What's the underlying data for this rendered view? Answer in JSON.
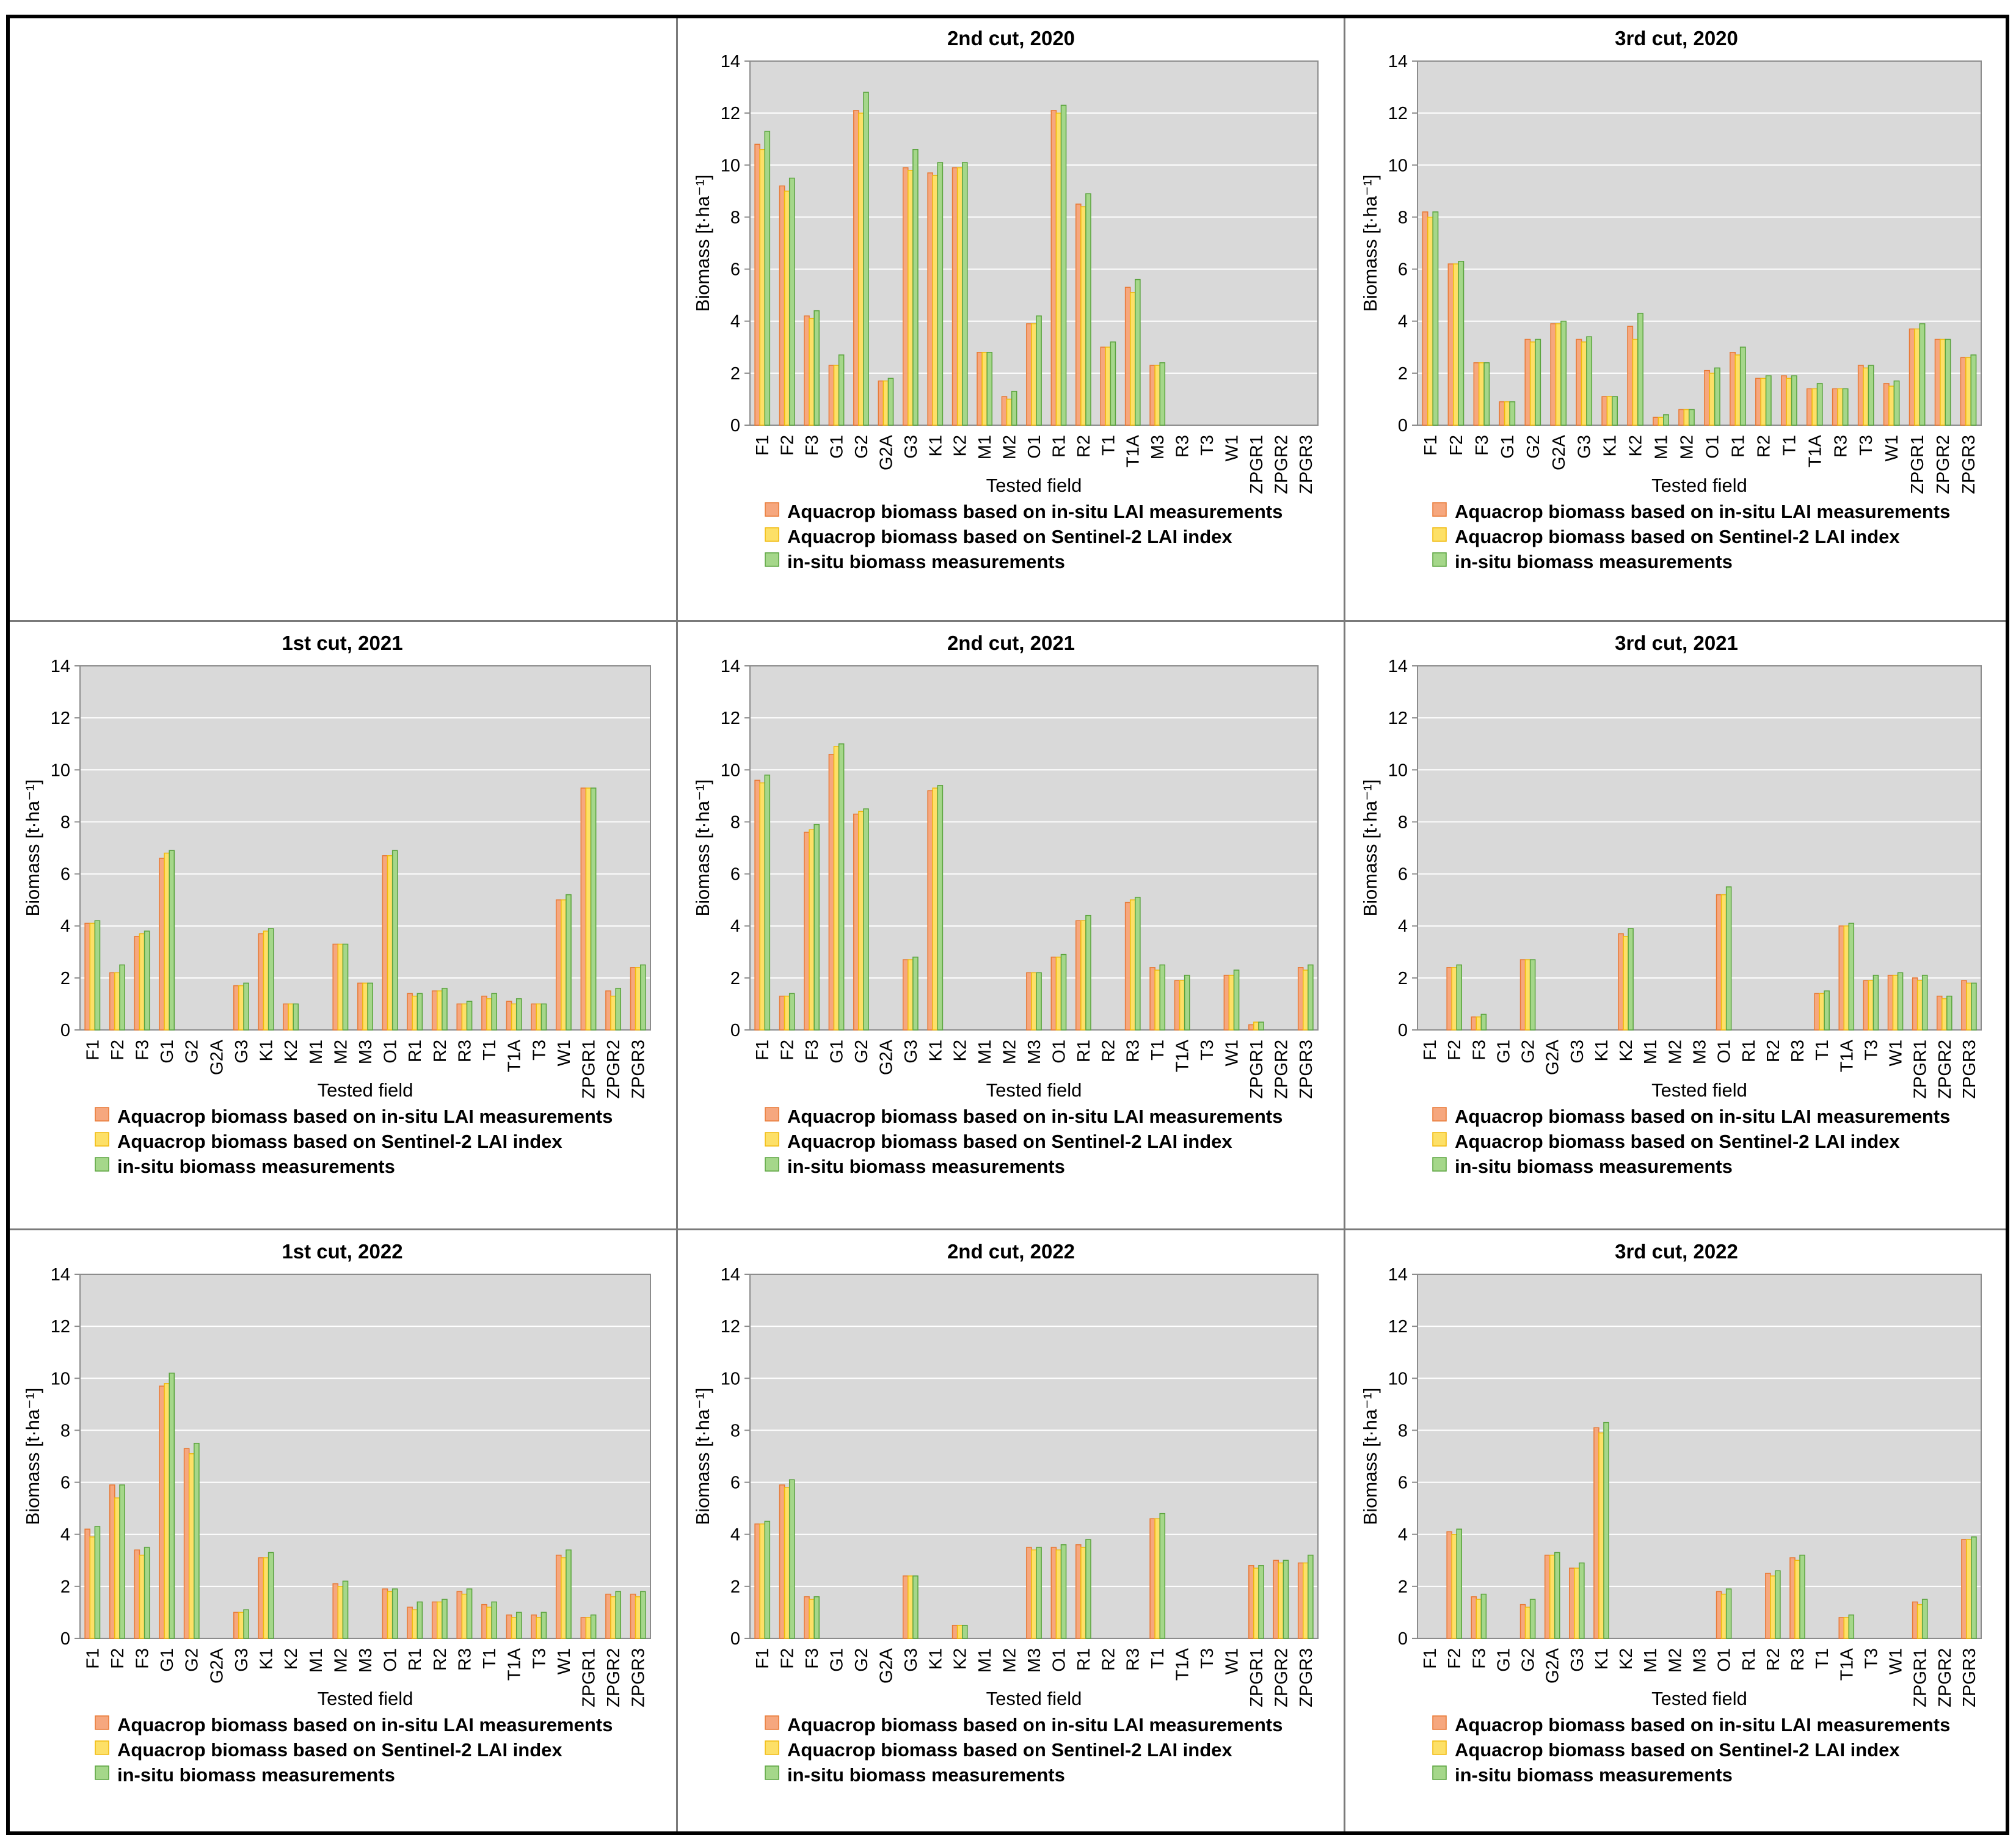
{
  "legend": {
    "s1": "Aquacrop biomass based on in-situ LAI measurements",
    "s2": "Aquacrop biomass based on Sentinel-2 LAI index",
    "s3": "in-situ biomass measurements"
  },
  "colors": {
    "s1_fill": "#f6a77e",
    "s1_stroke": "#e87935",
    "s2_fill": "#fde067",
    "s2_stroke": "#f0b90a",
    "s3_fill": "#a5d78a",
    "s3_stroke": "#5aa33e",
    "plot_bg": "#d9d9d9",
    "grid": "#ffffff"
  },
  "chart_data": [
    {
      "type": "bar",
      "title": "2nd cut, 2020",
      "xlabel": "Tested field",
      "ylabel": "Biomass  [t·ha⁻¹]",
      "ylim": [
        0,
        14
      ],
      "yticks": [
        0,
        2,
        4,
        6,
        8,
        10,
        12,
        14
      ],
      "categories": [
        "F1",
        "F2",
        "F3",
        "G1",
        "G2",
        "G2A",
        "G3",
        "K1",
        "K2",
        "M1",
        "M2",
        "O1",
        "R1",
        "R2",
        "T1",
        "T1A",
        "M3",
        "R3",
        "T3",
        "W1",
        "ZPGR1",
        "ZPGR2",
        "ZPGR3"
      ],
      "series": [
        {
          "name": "Aquacrop biomass based on in-situ LAI measurements",
          "values": [
            10.8,
            9.2,
            4.2,
            2.3,
            12.1,
            1.7,
            9.9,
            9.7,
            9.9,
            2.8,
            1.1,
            3.9,
            12.1,
            8.5,
            3.0,
            5.3,
            2.3,
            0,
            0,
            0,
            0,
            0,
            0
          ]
        },
        {
          "name": "Aquacrop biomass based on Sentinel-2 LAI index",
          "values": [
            10.6,
            9.0,
            4.1,
            2.3,
            12.0,
            1.7,
            9.8,
            9.6,
            9.9,
            2.8,
            1.0,
            3.9,
            12.0,
            8.4,
            3.0,
            5.1,
            2.3,
            0,
            0,
            0,
            0,
            0,
            0
          ]
        },
        {
          "name": "in-situ biomass measurements",
          "values": [
            11.3,
            9.5,
            4.4,
            2.7,
            12.8,
            1.8,
            10.6,
            10.1,
            10.1,
            2.8,
            1.3,
            4.2,
            12.3,
            8.9,
            3.2,
            5.6,
            2.4,
            0,
            0,
            0,
            0,
            0,
            0
          ]
        }
      ]
    },
    {
      "type": "bar",
      "title": "3rd cut, 2020",
      "xlabel": "Tested field",
      "ylabel": "Biomass  [t·ha⁻¹]",
      "ylim": [
        0,
        14
      ],
      "yticks": [
        0,
        2,
        4,
        6,
        8,
        10,
        12,
        14
      ],
      "categories": [
        "F1",
        "F2",
        "F3",
        "G1",
        "G2",
        "G2A",
        "G3",
        "K1",
        "K2",
        "M1",
        "M2",
        "O1",
        "R1",
        "R2",
        "T1",
        "T1A",
        "R3",
        "T3",
        "W1",
        "ZPGR1",
        "ZPGR2",
        "ZPGR3"
      ],
      "series": [
        {
          "name": "Aquacrop biomass based on in-situ LAI measurements",
          "values": [
            8.2,
            6.2,
            2.4,
            0.9,
            3.3,
            3.9,
            3.3,
            1.1,
            3.8,
            0.3,
            0.6,
            2.1,
            2.8,
            1.8,
            1.9,
            1.4,
            1.4,
            2.3,
            1.6,
            3.7,
            3.3,
            2.6
          ]
        },
        {
          "name": "Aquacrop biomass based on Sentinel-2 LAI index",
          "values": [
            8.0,
            6.2,
            2.4,
            0.9,
            3.2,
            3.9,
            3.2,
            1.1,
            3.3,
            0.3,
            0.6,
            2.0,
            2.7,
            1.8,
            1.8,
            1.4,
            1.4,
            2.2,
            1.5,
            3.7,
            3.3,
            2.6
          ]
        },
        {
          "name": "in-situ biomass measurements",
          "values": [
            8.2,
            6.3,
            2.4,
            0.9,
            3.3,
            4.0,
            3.4,
            1.1,
            4.3,
            0.4,
            0.6,
            2.2,
            3.0,
            1.9,
            1.9,
            1.6,
            1.4,
            2.3,
            1.7,
            3.9,
            3.3,
            2.7
          ]
        }
      ]
    },
    {
      "type": "bar",
      "title": "1st cut, 2021",
      "xlabel": "Tested field",
      "ylabel": "Biomass  [t·ha⁻¹]",
      "ylim": [
        0,
        14
      ],
      "yticks": [
        0,
        2,
        4,
        6,
        8,
        10,
        12,
        14
      ],
      "categories": [
        "F1",
        "F2",
        "F3",
        "G1",
        "G2",
        "G2A",
        "G3",
        "K1",
        "K2",
        "M1",
        "M2",
        "M3",
        "O1",
        "R1",
        "R2",
        "R3",
        "T1",
        "T1A",
        "T3",
        "W1",
        "ZPGR1",
        "ZPGR2",
        "ZPGR3"
      ],
      "series": [
        {
          "name": "Aquacrop biomass based on in-situ LAI measurements",
          "values": [
            4.1,
            2.2,
            3.6,
            6.6,
            0,
            0,
            1.7,
            3.7,
            1.0,
            0,
            3.3,
            1.8,
            6.7,
            1.4,
            1.5,
            1.0,
            1.3,
            1.1,
            1.0,
            5.0,
            9.3,
            1.5,
            2.4
          ]
        },
        {
          "name": "Aquacrop biomass based on Sentinel-2 LAI index",
          "values": [
            4.1,
            2.2,
            3.7,
            6.8,
            0,
            0,
            1.7,
            3.8,
            1.0,
            0,
            3.3,
            1.8,
            6.7,
            1.3,
            1.5,
            1.0,
            1.2,
            1.0,
            1.0,
            5.0,
            9.3,
            1.3,
            2.4
          ]
        },
        {
          "name": "in-situ biomass measurements",
          "values": [
            4.2,
            2.5,
            3.8,
            6.9,
            0,
            0,
            1.8,
            3.9,
            1.0,
            0,
            3.3,
            1.8,
            6.9,
            1.4,
            1.6,
            1.1,
            1.4,
            1.2,
            1.0,
            5.2,
            9.3,
            1.6,
            2.5
          ]
        }
      ]
    },
    {
      "type": "bar",
      "title": "2nd cut, 2021",
      "xlabel": "Tested field",
      "ylabel": "Biomass  [t·ha⁻¹]",
      "ylim": [
        0,
        14
      ],
      "yticks": [
        0,
        2,
        4,
        6,
        8,
        10,
        12,
        14
      ],
      "categories": [
        "F1",
        "F2",
        "F3",
        "G1",
        "G2",
        "G2A",
        "G3",
        "K1",
        "K2",
        "M1",
        "M2",
        "M3",
        "O1",
        "R1",
        "R2",
        "R3",
        "T1",
        "T1A",
        "T3",
        "W1",
        "ZPGR1",
        "ZPGR2",
        "ZPGR3"
      ],
      "series": [
        {
          "name": "Aquacrop biomass based on in-situ LAI measurements",
          "values": [
            9.6,
            1.3,
            7.6,
            10.6,
            8.3,
            0,
            2.7,
            9.2,
            0,
            0,
            0,
            2.2,
            2.8,
            4.2,
            0,
            4.9,
            2.4,
            1.9,
            0,
            2.1,
            0.2,
            0,
            2.4
          ]
        },
        {
          "name": "Aquacrop biomass based on Sentinel-2 LAI index",
          "values": [
            9.5,
            1.3,
            7.7,
            10.9,
            8.4,
            0,
            2.7,
            9.3,
            0,
            0,
            0,
            2.2,
            2.8,
            4.2,
            0,
            5.0,
            2.3,
            1.9,
            0,
            2.1,
            0.3,
            0,
            2.3
          ]
        },
        {
          "name": "in-situ biomass measurements",
          "values": [
            9.8,
            1.4,
            7.9,
            11.0,
            8.5,
            0,
            2.8,
            9.4,
            0,
            0,
            0,
            2.2,
            2.9,
            4.4,
            0,
            5.1,
            2.5,
            2.1,
            0,
            2.3,
            0.3,
            0,
            2.5
          ]
        }
      ]
    },
    {
      "type": "bar",
      "title": "3rd cut, 2021",
      "xlabel": "Tested field",
      "ylabel": "Biomass  [t·ha⁻¹]",
      "ylim": [
        0,
        14
      ],
      "yticks": [
        0,
        2,
        4,
        6,
        8,
        10,
        12,
        14
      ],
      "categories": [
        "F1",
        "F2",
        "F3",
        "G1",
        "G2",
        "G2A",
        "G3",
        "K1",
        "K2",
        "M1",
        "M2",
        "M3",
        "O1",
        "R1",
        "R2",
        "R3",
        "T1",
        "T1A",
        "T3",
        "W1",
        "ZPGR1",
        "ZPGR2",
        "ZPGR3"
      ],
      "series": [
        {
          "name": "Aquacrop biomass based on in-situ LAI measurements",
          "values": [
            0,
            2.4,
            0.5,
            0,
            2.7,
            0,
            0,
            0,
            3.7,
            0,
            0,
            0,
            5.2,
            0,
            0,
            0,
            1.4,
            4.0,
            1.9,
            2.1,
            2.0,
            1.3,
            1.9
          ]
        },
        {
          "name": "Aquacrop biomass based on Sentinel-2 LAI index",
          "values": [
            0,
            2.4,
            0.5,
            0,
            2.7,
            0,
            0,
            0,
            3.6,
            0,
            0,
            0,
            5.2,
            0,
            0,
            0,
            1.4,
            4.0,
            1.9,
            2.1,
            1.9,
            1.2,
            1.8
          ]
        },
        {
          "name": "in-situ biomass measurements",
          "values": [
            0,
            2.5,
            0.6,
            0,
            2.7,
            0,
            0,
            0,
            3.9,
            0,
            0,
            0,
            5.5,
            0,
            0,
            0,
            1.5,
            4.1,
            2.1,
            2.2,
            2.1,
            1.3,
            1.8
          ]
        }
      ]
    },
    {
      "type": "bar",
      "title": "1st cut, 2022",
      "xlabel": "Tested field",
      "ylabel": "Biomass  [t·ha⁻¹]",
      "ylim": [
        0,
        14
      ],
      "yticks": [
        0,
        2,
        4,
        6,
        8,
        10,
        12,
        14
      ],
      "categories": [
        "F1",
        "F2",
        "F3",
        "G1",
        "G2",
        "G2A",
        "G3",
        "K1",
        "K2",
        "M1",
        "M2",
        "M3",
        "O1",
        "R1",
        "R2",
        "R3",
        "T1",
        "T1A",
        "T3",
        "W1",
        "ZPGR1",
        "ZPGR2",
        "ZPGR3"
      ],
      "series": [
        {
          "name": "Aquacrop biomass based on in-situ LAI measurements",
          "values": [
            4.2,
            5.9,
            3.4,
            9.7,
            7.3,
            0,
            1.0,
            3.1,
            0,
            0,
            2.1,
            0,
            1.9,
            1.2,
            1.4,
            1.8,
            1.3,
            0.9,
            0.9,
            3.2,
            0.8,
            1.7,
            1.7
          ]
        },
        {
          "name": "Aquacrop biomass based on Sentinel-2 LAI index",
          "values": [
            3.9,
            5.4,
            3.2,
            9.8,
            7.1,
            0,
            1.0,
            3.1,
            0,
            0,
            2.0,
            0,
            1.8,
            1.1,
            1.4,
            1.7,
            1.2,
            0.8,
            0.8,
            3.1,
            0.8,
            1.6,
            1.6
          ]
        },
        {
          "name": "in-situ biomass measurements",
          "values": [
            4.3,
            5.9,
            3.5,
            10.2,
            7.5,
            0,
            1.1,
            3.3,
            0,
            0,
            2.2,
            0,
            1.9,
            1.4,
            1.5,
            1.9,
            1.4,
            1.0,
            1.0,
            3.4,
            0.9,
            1.8,
            1.8
          ]
        }
      ]
    },
    {
      "type": "bar",
      "title": "2nd cut, 2022",
      "xlabel": "Tested field",
      "ylabel": "Biomass  [t·ha⁻¹]",
      "ylim": [
        0,
        14
      ],
      "yticks": [
        0,
        2,
        4,
        6,
        8,
        10,
        12,
        14
      ],
      "categories": [
        "F1",
        "F2",
        "F3",
        "G1",
        "G2",
        "G2A",
        "G3",
        "K1",
        "K2",
        "M1",
        "M2",
        "M3",
        "O1",
        "R1",
        "R2",
        "R3",
        "T1",
        "T1A",
        "T3",
        "W1",
        "ZPGR1",
        "ZPGR2",
        "ZPGR3"
      ],
      "series": [
        {
          "name": "Aquacrop biomass based on in-situ LAI measurements",
          "values": [
            4.4,
            5.9,
            1.6,
            0,
            0,
            0,
            2.4,
            0,
            0.5,
            0,
            0,
            3.5,
            3.5,
            3.6,
            0,
            0,
            4.6,
            0,
            0,
            0,
            2.8,
            3.0,
            2.9
          ]
        },
        {
          "name": "Aquacrop biomass based on Sentinel-2 LAI index",
          "values": [
            4.4,
            5.8,
            1.5,
            0,
            0,
            0,
            2.4,
            0,
            0.5,
            0,
            0,
            3.4,
            3.4,
            3.5,
            0,
            0,
            4.6,
            0,
            0,
            0,
            2.7,
            2.9,
            2.9
          ]
        },
        {
          "name": "in-situ biomass measurements",
          "values": [
            4.5,
            6.1,
            1.6,
            0,
            0,
            0,
            2.4,
            0,
            0.5,
            0,
            0,
            3.5,
            3.6,
            3.8,
            0,
            0,
            4.8,
            0,
            0,
            0,
            2.8,
            3.0,
            3.2
          ]
        }
      ]
    },
    {
      "type": "bar",
      "title": "3rd cut, 2022",
      "xlabel": "Tested field",
      "ylabel": "Biomass  [t·ha⁻¹]",
      "ylim": [
        0,
        14
      ],
      "yticks": [
        0,
        2,
        4,
        6,
        8,
        10,
        12,
        14
      ],
      "categories": [
        "F1",
        "F2",
        "F3",
        "G1",
        "G2",
        "G2A",
        "G3",
        "K1",
        "K2",
        "M1",
        "M2",
        "M3",
        "O1",
        "R1",
        "R2",
        "R3",
        "T1",
        "T1A",
        "T3",
        "W1",
        "ZPGR1",
        "ZPGR2",
        "ZPGR3"
      ],
      "series": [
        {
          "name": "Aquacrop biomass based on in-situ LAI measurements",
          "values": [
            0,
            4.1,
            1.6,
            0,
            1.3,
            3.2,
            2.7,
            8.1,
            0,
            0,
            0,
            0,
            1.8,
            0,
            2.5,
            3.1,
            0,
            0.8,
            0,
            0,
            1.4,
            0,
            3.8
          ]
        },
        {
          "name": "Aquacrop biomass based on Sentinel-2 LAI index",
          "values": [
            0,
            4.0,
            1.5,
            0,
            1.2,
            3.2,
            2.7,
            7.9,
            0,
            0,
            0,
            0,
            1.7,
            0,
            2.4,
            3.0,
            0,
            0.8,
            0,
            0,
            1.3,
            0,
            3.8
          ]
        },
        {
          "name": "in-situ biomass measurements",
          "values": [
            0,
            4.2,
            1.7,
            0,
            1.5,
            3.3,
            2.9,
            8.3,
            0,
            0,
            0,
            0,
            1.9,
            0,
            2.6,
            3.2,
            0,
            0.9,
            0,
            0,
            1.5,
            0,
            3.9
          ]
        }
      ]
    }
  ]
}
